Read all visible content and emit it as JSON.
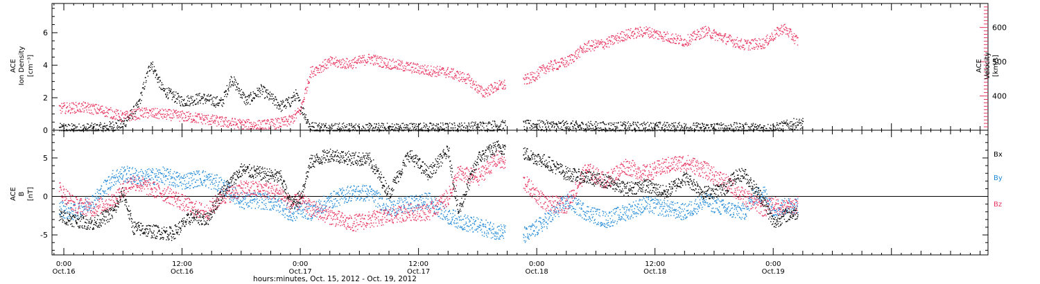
{
  "chart_data": [
    {
      "type": "scatter",
      "panel": "plasma",
      "ylabel_left": [
        "ACE",
        "Ion Density",
        "[cm⁻³]"
      ],
      "ylabel_right": [
        "ACE",
        "Velocity",
        "[km/s]"
      ],
      "ylim": [
        0,
        7.8
      ],
      "y_ticks": [
        "0",
        "2",
        "4",
        "6"
      ],
      "y2lim": [
        300,
        670
      ],
      "y2_ticks": [
        "400",
        "500",
        "600"
      ],
      "x_range_hours": [
        -1.2,
        93.8
      ],
      "series": [
        {
          "name": "",
          "color": "#000000",
          "axis": "left",
          "description": "ion density",
          "x_hours": [
            -0.5,
            2,
            4,
            6,
            7.5,
            8.8,
            10,
            12,
            14,
            16,
            17,
            18.5,
            20,
            22,
            23,
            23.5,
            25,
            30,
            35,
            40,
            44,
            44.5,
            48,
            52,
            56,
            60,
            64,
            68,
            72,
            74,
            75
          ],
          "values": [
            0.1,
            0.1,
            0.15,
            0.4,
            1.5,
            4.2,
            2.5,
            1.8,
            2.0,
            1.7,
            3.2,
            1.8,
            2.5,
            1.5,
            1.8,
            2.2,
            0.2,
            0.1,
            0.15,
            0.15,
            0.3,
            0.3,
            0.3,
            0.25,
            0.2,
            0.2,
            0.15,
            0.15,
            0.1,
            0.4,
            0.4
          ]
        },
        {
          "name": "",
          "color": "#e8335f",
          "axis": "right",
          "description": "solar wind velocity",
          "x_hours": [
            -0.5,
            2,
            4,
            6,
            8,
            10,
            12,
            14,
            16,
            18,
            20,
            22,
            23,
            24,
            25,
            27,
            29,
            31,
            33,
            35,
            37,
            39,
            41,
            42.5,
            44,
            46,
            47.5,
            49,
            51,
            53,
            55,
            57,
            59,
            61,
            63,
            65,
            67,
            69,
            71,
            73,
            74.5
          ],
          "values": [
            365,
            368,
            358,
            340,
            352,
            348,
            342,
            335,
            326,
            318,
            315,
            322,
            330,
            360,
            470,
            500,
            495,
            510,
            495,
            485,
            475,
            470,
            450,
            410,
            430,
            440,
            455,
            485,
            500,
            545,
            555,
            580,
            590,
            575,
            560,
            590,
            570,
            550,
            555,
            600,
            560
          ]
        }
      ],
      "gap_hours": [
        44.8,
        46.6
      ]
    },
    {
      "type": "scatter",
      "panel": "magnetic-field",
      "ylabel": [
        "ACE",
        "B",
        "[nT]"
      ],
      "ylim": [
        -7.6,
        8.6
      ],
      "y_ticks": [
        "-5",
        "0",
        "5"
      ],
      "series": [
        {
          "name": "Bx",
          "color": "#000000",
          "x_hours": [
            -0.5,
            1,
            3,
            5,
            6,
            7,
            9,
            11,
            13,
            14.5,
            16,
            18,
            20,
            22,
            23,
            24,
            25,
            27,
            29,
            31,
            33,
            35,
            37,
            39,
            40,
            42,
            44,
            47,
            49,
            51,
            53,
            55,
            57,
            59,
            61,
            63,
            65,
            67,
            68,
            69,
            71,
            72,
            73,
            74.5
          ],
          "values": [
            -2.5,
            -3.0,
            -3.5,
            -2.0,
            0.5,
            -4.0,
            -4.5,
            -4.8,
            -2.5,
            -3.0,
            0.5,
            3.5,
            3.0,
            2.5,
            -1.0,
            0.0,
            4.5,
            5.5,
            5.0,
            4.8,
            0.5,
            5.5,
            3.0,
            6.0,
            -2.0,
            5.0,
            6.5,
            5.5,
            4.5,
            3.0,
            2.5,
            2.0,
            1.0,
            1.5,
            0.5,
            2.5,
            0.5,
            1.0,
            2.5,
            3.0,
            -0.5,
            -3.5,
            -2.5,
            -2.0
          ]
        },
        {
          "name": "By",
          "color": "#1e88d8",
          "x_hours": [
            -0.5,
            1,
            3,
            5,
            6,
            8,
            10,
            12,
            14,
            16,
            18,
            20,
            22,
            23,
            24,
            25,
            27,
            29,
            31,
            33,
            35,
            37,
            39,
            41,
            42.5,
            44,
            47,
            49,
            51,
            53,
            55,
            57,
            59,
            61,
            63,
            65,
            67,
            69,
            70,
            71,
            72,
            74.5
          ],
          "values": [
            -1.5,
            -2.0,
            -0.5,
            2.5,
            3.0,
            2.5,
            2.8,
            2.0,
            2.5,
            1.5,
            -0.5,
            -0.5,
            -1.0,
            -2.5,
            -1.5,
            -2.0,
            -0.5,
            0.5,
            0.5,
            -1.5,
            -1.0,
            -0.5,
            -2.5,
            -3.5,
            -4.0,
            -4.5,
            -5.0,
            -3.0,
            -0.5,
            -2.0,
            -3.0,
            -2.0,
            -1.0,
            -1.5,
            -2.0,
            -0.5,
            -1.5,
            -2.0,
            0.0,
            0.5,
            -1.5,
            -1.0
          ]
        },
        {
          "name": "Bz",
          "color": "#e8335f",
          "x_hours": [
            -0.5,
            1,
            3,
            5,
            6,
            7,
            9,
            11,
            13,
            14.5,
            16,
            18,
            20,
            22,
            23,
            24,
            25,
            27,
            29,
            31,
            33,
            35,
            37,
            39,
            40,
            42,
            44,
            47,
            49,
            51,
            53,
            55,
            57,
            59,
            61,
            63,
            65,
            67,
            69,
            71,
            72,
            73,
            74.5
          ],
          "values": [
            1.0,
            -1.0,
            -1.5,
            -0.5,
            1.0,
            2.0,
            1.0,
            0.0,
            -1.5,
            -2.0,
            0.0,
            1.0,
            1.0,
            0.5,
            -1.0,
            -0.5,
            -1.5,
            -2.5,
            -3.5,
            -3.0,
            -2.5,
            -2.0,
            -2.0,
            0.0,
            3.0,
            2.5,
            5.0,
            1.5,
            -1.0,
            -1.0,
            3.5,
            2.0,
            4.0,
            3.0,
            4.0,
            4.5,
            3.5,
            2.0,
            0.0,
            -1.5,
            -1.0,
            -1.5,
            -1.0
          ]
        }
      ],
      "legend": [
        "Bx",
        "By",
        "Bz"
      ],
      "legend_position": "right"
    }
  ],
  "x_axis": {
    "major_ticks": [
      {
        "time": "0:00",
        "date": "Oct.16"
      },
      {
        "time": "12:00",
        "date": "Oct.16"
      },
      {
        "time": "0:00",
        "date": "Oct.17"
      },
      {
        "time": "12:00",
        "date": "Oct.17"
      },
      {
        "time": "0:00",
        "date": "Oct.18"
      },
      {
        "time": "12:00",
        "date": "Oct.18"
      },
      {
        "time": "0:00",
        "date": "Oct.19"
      }
    ],
    "xlabel": "hours:minutes, Oct. 15, 2012 - Oct. 19, 2012"
  },
  "colors": {
    "density": "#000000",
    "velocity": "#e8335f",
    "bx": "#000000",
    "by": "#1e88d8",
    "bz": "#e8335f",
    "frame": "#000000"
  }
}
